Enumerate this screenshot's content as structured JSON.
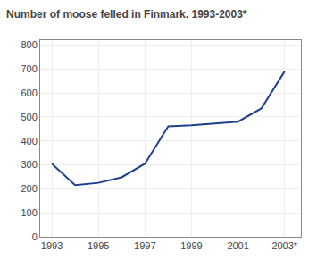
{
  "chart_data": {
    "type": "line",
    "title": "Number of moose felled in Finmark. 1993-2003*",
    "x": [
      1993,
      1994,
      1995,
      1996,
      1997,
      1998,
      1999,
      2000,
      2001,
      2002,
      2003
    ],
    "values": [
      305,
      215,
      225,
      248,
      305,
      460,
      465,
      472,
      480,
      535,
      690
    ],
    "color": "#1f3f8f",
    "xlim": [
      1992.5,
      2003.7
    ],
    "xticks": [
      1993,
      1995,
      1997,
      1999,
      2001,
      {
        "value": 2003,
        "label": "2003*"
      }
    ],
    "ylim": [
      0,
      820
    ],
    "yticks": [
      0,
      100,
      200,
      300,
      400,
      500,
      600,
      700,
      800
    ],
    "grid": true
  }
}
